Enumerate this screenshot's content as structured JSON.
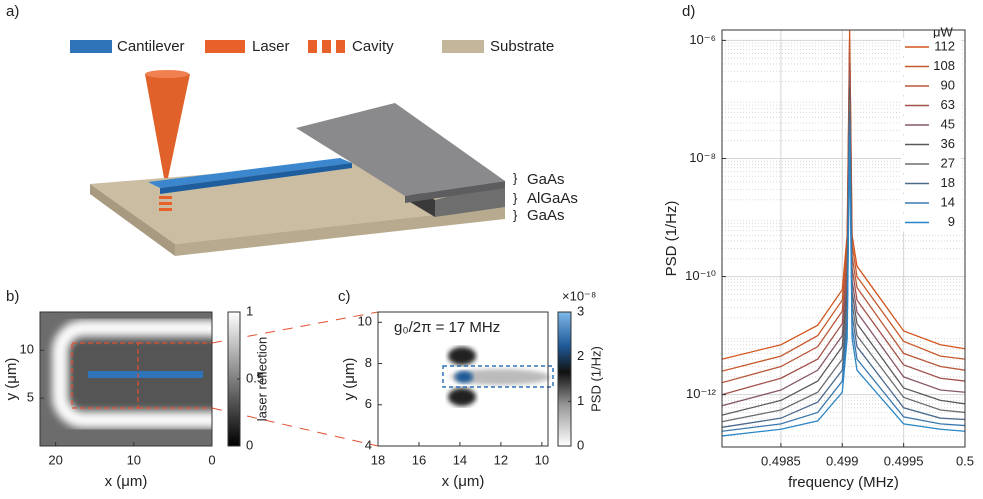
{
  "panel_labels": [
    "a)",
    "b)",
    "c)",
    "d)"
  ],
  "diagram": {
    "legend": [
      "Cantilever",
      "Laser",
      "Cavity",
      "Substrate"
    ],
    "layers": [
      "GaAs",
      "AlGaAs",
      "GaAs"
    ]
  },
  "chart_data": [
    {
      "type": "heatmap",
      "xlabel": "x (μm)",
      "ylabel": "y (μm)",
      "xlim": [
        22,
        0
      ],
      "xticks": [
        20,
        10,
        0
      ],
      "ylim": [
        0,
        14
      ],
      "yticks": [
        5,
        10
      ],
      "colorbar": {
        "label": "laser reflection",
        "lim": [
          0,
          1
        ],
        "ticks": [
          0,
          0.5,
          1
        ]
      }
    },
    {
      "type": "heatmap",
      "xlabel": "x (μm)",
      "ylabel": "y (μm)",
      "annotation": "g₀/2π = 17 MHz",
      "xlim": [
        18,
        9.7
      ],
      "xticks": [
        18,
        16,
        14,
        12,
        10
      ],
      "ylim": [
        4,
        10.5
      ],
      "yticks": [
        4,
        6,
        8,
        10
      ],
      "colorbar": {
        "label": "PSD (1/Hz)",
        "multiplier": "×10⁻⁸",
        "lim": [
          0,
          3
        ],
        "ticks": [
          0,
          1,
          2,
          3
        ]
      }
    },
    {
      "type": "line",
      "xlabel": "frequency (MHz)",
      "ylabel": "PSD (1/Hz)",
      "log_y": true,
      "grid": true,
      "legend_title": "μW",
      "legend": "upper right",
      "xlim": [
        0.49802,
        0.5
      ],
      "xticks": [
        0.4985,
        0.499,
        0.4995,
        0.5
      ],
      "ylim": [
        1.3e-13,
        1.5e-06
      ],
      "yticks": [
        {
          "value": 1e-12,
          "label": "10⁻¹²"
        },
        {
          "value": 1e-10,
          "label": "10⁻¹⁰"
        },
        {
          "value": 1e-08,
          "label": "10⁻⁸"
        },
        {
          "value": 1e-06,
          "label": "10⁻⁶"
        }
      ],
      "x": [
        0.49802,
        0.4985,
        0.4988,
        0.499,
        0.49904,
        0.49906,
        0.49908,
        0.49912,
        0.4995,
        0.4998,
        0.5
      ],
      "series": [
        {
          "name": "112",
          "color": "#d4541c",
          "values": [
            4e-12,
            7e-12,
            1.5e-11,
            6e-11,
            5e-10,
            1.5e-06,
            5e-10,
            1.5e-10,
            1.2e-11,
            7e-12,
            6e-12
          ]
        },
        {
          "name": "108",
          "color": "#c75a2c",
          "values": [
            2.5e-12,
            4.5e-12,
            1e-11,
            4e-11,
            3.5e-10,
            1e-06,
            3.5e-10,
            1e-10,
            8e-12,
            4.5e-12,
            4e-12
          ]
        },
        {
          "name": "90",
          "color": "#b8583a",
          "values": [
            1.6e-12,
            3e-12,
            6.5e-12,
            2.6e-11,
            2.2e-10,
            7e-07,
            2.2e-10,
            6.5e-11,
            5e-12,
            3e-12,
            2.6e-12
          ]
        },
        {
          "name": "63",
          "color": "#a2524a",
          "values": [
            1e-12,
            1.9e-12,
            4e-12,
            1.6e-11,
            1.4e-10,
            4e-07,
            1.4e-10,
            4e-11,
            3.2e-12,
            1.9e-12,
            1.7e-12
          ]
        },
        {
          "name": "45",
          "color": "#86586a",
          "values": [
            6.5e-13,
            1.2e-12,
            2.6e-12,
            1e-11,
            8.5e-11,
            2.5e-07,
            8.5e-11,
            2.5e-11,
            2e-12,
            1.2e-12,
            1.1e-12
          ]
        },
        {
          "name": "36",
          "color": "#5a5a5e",
          "values": [
            4.5e-13,
            8e-13,
            1.7e-12,
            6.5e-12,
            5.5e-11,
            1.6e-07,
            5.5e-11,
            1.6e-11,
            1.3e-12,
            8e-13,
            7e-13
          ]
        },
        {
          "name": "27",
          "color": "#6a6e72",
          "values": [
            3.5e-13,
            5.5e-13,
            1.1e-12,
            4e-12,
            3.5e-11,
            1e-07,
            3.5e-11,
            1e-11,
            9e-13,
            5.5e-13,
            5e-13
          ]
        },
        {
          "name": "18",
          "color": "#4c6a8c",
          "values": [
            2.8e-13,
            4e-13,
            7.5e-13,
            2.6e-12,
            2.2e-11,
            6e-08,
            2.2e-11,
            6.5e-12,
            6e-13,
            4e-13,
            3.8e-13
          ]
        },
        {
          "name": "14",
          "color": "#3a78ae",
          "values": [
            2.4e-13,
            3.2e-13,
            5e-13,
            1.7e-12,
            1.4e-11,
            4e-08,
            1.4e-11,
            4e-12,
            4.2e-13,
            3.2e-13,
            3e-13
          ]
        },
        {
          "name": "9",
          "color": "#2a86c6",
          "values": [
            2e-13,
            2.6e-13,
            3.6e-13,
            1.1e-12,
            9e-12,
            2.5e-08,
            9e-12,
            2.6e-12,
            3.2e-13,
            2.6e-13,
            2.4e-13
          ]
        }
      ]
    }
  ]
}
